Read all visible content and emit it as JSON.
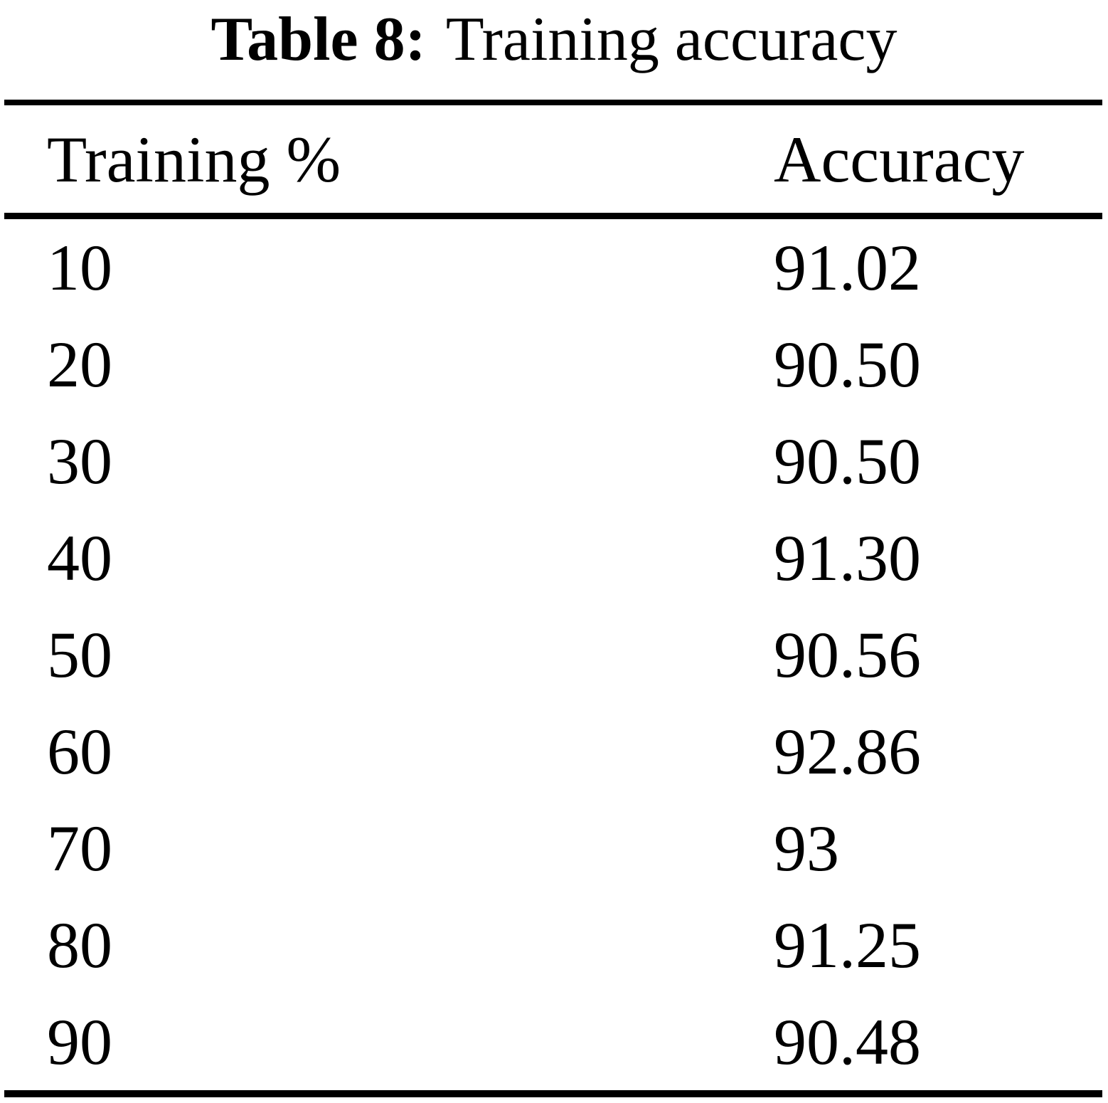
{
  "table": {
    "caption": {
      "label": "Table 8:",
      "text": "Training accuracy"
    },
    "columns": [
      "Training %",
      "Accuracy"
    ],
    "rows": [
      {
        "training_pct": "10",
        "accuracy": "91.02"
      },
      {
        "training_pct": "20",
        "accuracy": "90.50"
      },
      {
        "training_pct": "30",
        "accuracy": "90.50"
      },
      {
        "training_pct": "40",
        "accuracy": "91.30"
      },
      {
        "training_pct": "50",
        "accuracy": "90.56"
      },
      {
        "training_pct": "60",
        "accuracy": "92.86"
      },
      {
        "training_pct": "70",
        "accuracy": "93"
      },
      {
        "training_pct": "80",
        "accuracy": "91.25"
      },
      {
        "training_pct": "90",
        "accuracy": "90.48"
      }
    ],
    "colors": {
      "text": "#000000",
      "background": "#ffffff",
      "rule": "#000000"
    }
  }
}
